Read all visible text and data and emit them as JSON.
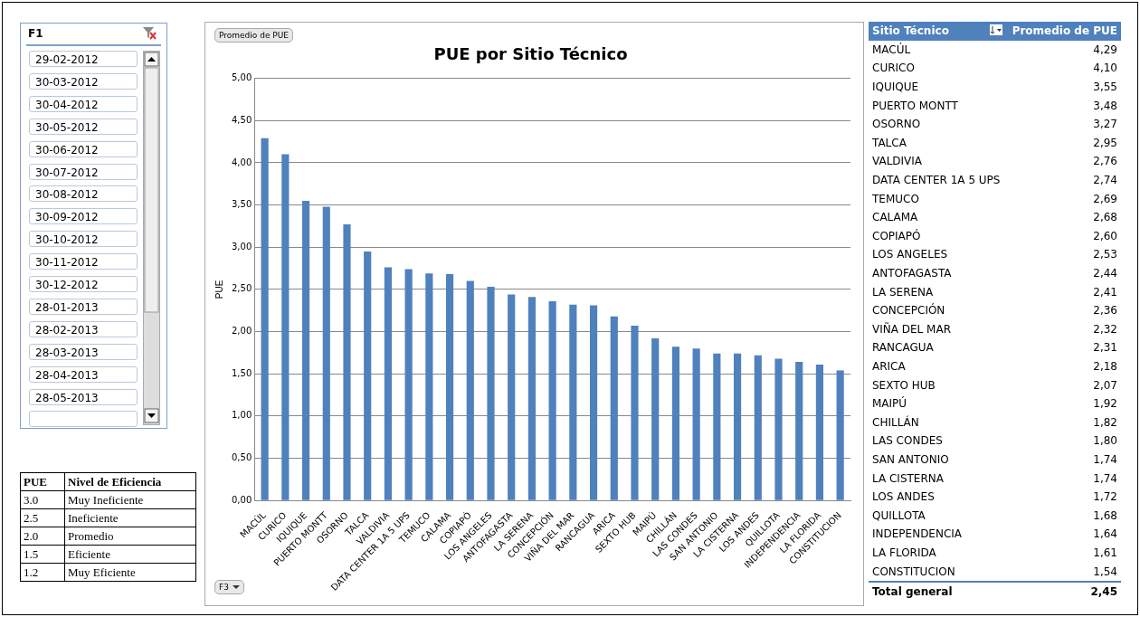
{
  "chart_data": {
    "type": "bar",
    "title": "PUE por Sitio Técnico",
    "ylabel": "PUE",
    "categories": [
      "MACÚL",
      "CURICO",
      "IQUIQUE",
      "PUERTO MONTT",
      "OSORNO",
      "TALCA",
      "VALDIVIA",
      "DATA CENTER 1A 5 UPS",
      "TEMUCO",
      "CALAMA",
      "COPIAPÓ",
      "LOS ANGELES",
      "ANTOFAGASTA",
      "LA SERENA",
      "CONCEPCIÓN",
      "VIÑA DEL MAR",
      "RANCAGUA",
      "ARICA",
      "SEXTO HUB",
      "MAIPÚ",
      "CHILLÁN",
      "LAS CONDES",
      "SAN ANTONIO",
      "LA CISTERNA",
      "LOS ANDES",
      "QUILLOTA",
      "INDEPENDENCIA",
      "LA FLORIDA",
      "CONSTITUCION"
    ],
    "values": [
      4.29,
      4.1,
      3.55,
      3.48,
      3.27,
      2.95,
      2.76,
      2.74,
      2.69,
      2.68,
      2.6,
      2.53,
      2.44,
      2.41,
      2.36,
      2.32,
      2.31,
      2.18,
      2.07,
      1.92,
      1.82,
      1.8,
      1.74,
      1.74,
      1.72,
      1.68,
      1.64,
      1.61,
      1.54
    ],
    "color": "#4f81bd",
    "ylim": [
      0,
      5
    ],
    "yticks": [
      {
        "value": 0,
        "label": "0,00"
      },
      {
        "value": 0.5,
        "label": "0,50"
      },
      {
        "value": 1,
        "label": "1,00"
      },
      {
        "value": 1.5,
        "label": "1,50"
      },
      {
        "value": 2,
        "label": "2,00"
      },
      {
        "value": 2.5,
        "label": "2,50"
      },
      {
        "value": 3,
        "label": "3,00"
      },
      {
        "value": 3.5,
        "label": "3,50"
      },
      {
        "value": 4,
        "label": "4,00"
      },
      {
        "value": 4.5,
        "label": "4,50"
      },
      {
        "value": 5,
        "label": "5,00"
      }
    ],
    "grid": "y",
    "legend": false,
    "annotations": [
      "Promedio de PUE",
      "F3",
      "F1",
      "29-02-2012",
      "30-03-2012",
      "30-04-2012",
      "30-05-2012",
      "30-06-2012",
      "30-07-2012",
      "30-08-2012",
      "30-09-2012",
      "30-10-2012",
      "30-11-2012",
      "30-12-2012",
      "28-01-2013",
      "28-02-2013",
      "28-03-2013",
      "28-04-2013",
      "28-05-2013",
      "PUE",
      "Nivel de Eficiencia",
      "3.0",
      "Muy Ineficiente",
      "2.5",
      "Ineficiente",
      "2.0",
      "Promedio",
      "1.5",
      "Eficiente",
      "1.2",
      "Muy Eficiente",
      "Sitio Técnico",
      "Promedio de PUE",
      "Total general",
      "2,45",
      "4,29",
      "4,10",
      "3,55",
      "3,48",
      "3,27",
      "2,95",
      "2,76",
      "2,74",
      "2,69",
      "2,68",
      "2,60",
      "2,53",
      "2,44",
      "2,41",
      "2,36",
      "2,32",
      "2,31",
      "2,18",
      "2,07",
      "1,92",
      "1,82",
      "1,80",
      "1,74",
      "1,74",
      "1,72",
      "1,68",
      "1,64",
      "1,61",
      "1,54"
    ]
  }
}
